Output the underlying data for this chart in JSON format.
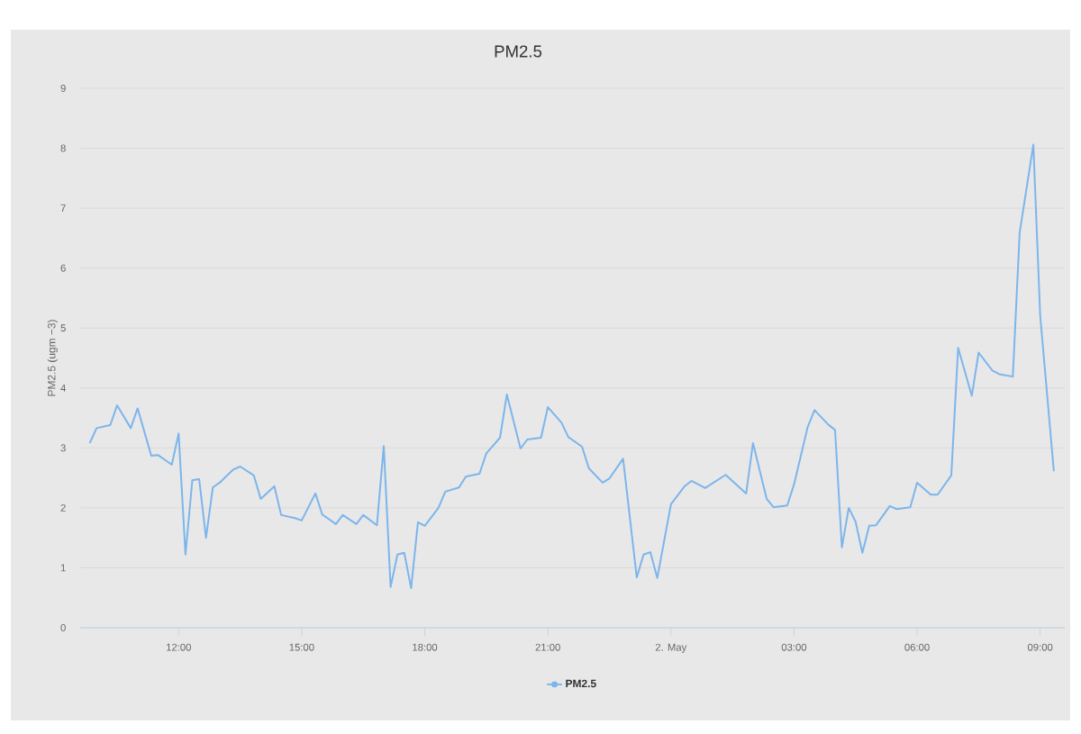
{
  "chart_data": {
    "type": "line",
    "title": "PM2.5",
    "ylabel": "PM2.5 (ugm −3)",
    "x": [
      "--05-01T09:50",
      "--05-01T10:00",
      "--05-01T10:20",
      "--05-01T10:30",
      "--05-01T10:50",
      "--05-01T11:00",
      "--05-01T11:20",
      "--05-01T11:30",
      "--05-01T11:50",
      "--05-01T12:00",
      "--05-01T12:10",
      "--05-01T12:20",
      "--05-01T12:30",
      "--05-01T12:40",
      "--05-01T12:50",
      "--05-01T13:00",
      "--05-01T13:20",
      "--05-01T13:30",
      "--05-01T13:50",
      "--05-01T14:00",
      "--05-01T14:20",
      "--05-01T14:30",
      "--05-01T14:50",
      "--05-01T15:00",
      "--05-01T15:20",
      "--05-01T15:30",
      "--05-01T15:50",
      "--05-01T16:00",
      "--05-01T16:20",
      "--05-01T16:30",
      "--05-01T16:50",
      "--05-01T17:00",
      "--05-01T17:10",
      "--05-01T17:20",
      "--05-01T17:30",
      "--05-01T17:40",
      "--05-01T17:50",
      "--05-01T18:00",
      "--05-01T18:20",
      "--05-01T18:30",
      "--05-01T18:50",
      "--05-01T19:00",
      "--05-01T19:20",
      "--05-01T19:30",
      "--05-01T19:50",
      "--05-01T20:00",
      "--05-01T20:20",
      "--05-01T20:30",
      "--05-01T20:50",
      "--05-01T21:00",
      "--05-01T21:20",
      "--05-01T21:30",
      "--05-01T21:50",
      "--05-01T22:00",
      "--05-01T22:20",
      "--05-01T22:30",
      "--05-01T22:50",
      "--05-01T23:10",
      "--05-01T23:20",
      "--05-01T23:30",
      "--05-01T23:40",
      "--05-02T00:00",
      "--05-02T00:20",
      "--05-02T00:30",
      "--05-02T00:50",
      "--05-02T01:20",
      "--05-02T01:50",
      "--05-02T02:00",
      "--05-02T02:20",
      "--05-02T02:30",
      "--05-02T02:50",
      "--05-02T03:00",
      "--05-02T03:20",
      "--05-02T03:30",
      "--05-02T03:50",
      "--05-02T04:00",
      "--05-02T04:10",
      "--05-02T04:20",
      "--05-02T04:30",
      "--05-02T04:40",
      "--05-02T04:50",
      "--05-02T05:00",
      "--05-02T05:20",
      "--05-02T05:30",
      "--05-02T05:50",
      "--05-02T06:00",
      "--05-02T06:20",
      "--05-02T06:30",
      "--05-02T06:50",
      "--05-02T07:00",
      "--05-02T07:20",
      "--05-02T07:30",
      "--05-02T07:50",
      "--05-02T08:00",
      "--05-02T08:20",
      "--05-02T08:30",
      "--05-02T08:50",
      "--05-02T09:00",
      "--05-02T09:20"
    ],
    "xlim": [
      "--05-01T09:36",
      "--05-02T09:36"
    ],
    "xticks": [
      {
        "value": "--05-01T12:00",
        "label": "12:00"
      },
      {
        "value": "--05-01T15:00",
        "label": "15:00"
      },
      {
        "value": "--05-01T18:00",
        "label": "18:00"
      },
      {
        "value": "--05-01T21:00",
        "label": "21:00"
      },
      {
        "value": "--05-02T00:00",
        "label": "2. May"
      },
      {
        "value": "--05-02T03:00",
        "label": "03:00"
      },
      {
        "value": "--05-02T06:00",
        "label": "06:00"
      },
      {
        "value": "--05-02T09:00",
        "label": "09:00"
      }
    ],
    "ylim": [
      0,
      9
    ],
    "yticks": [
      0,
      1,
      2,
      3,
      4,
      5,
      6,
      7,
      8,
      9
    ],
    "grid": "y",
    "legend": "bottom",
    "series": [
      {
        "name": "PM2.5",
        "color": "#7cb5ec",
        "values": [
          3.08,
          3.33,
          3.38,
          3.71,
          3.33,
          3.66,
          2.87,
          2.88,
          2.72,
          3.24,
          1.22,
          2.46,
          2.48,
          1.5,
          2.34,
          2.42,
          2.64,
          2.69,
          2.54,
          2.15,
          2.36,
          1.88,
          1.83,
          1.79,
          2.24,
          1.89,
          1.73,
          1.88,
          1.73,
          1.88,
          1.71,
          3.03,
          0.68,
          1.22,
          1.25,
          0.66,
          1.76,
          1.7,
          2.0,
          2.27,
          2.34,
          2.52,
          2.57,
          2.91,
          3.17,
          3.89,
          2.99,
          3.14,
          3.17,
          3.68,
          3.42,
          3.18,
          3.02,
          2.66,
          2.42,
          2.49,
          2.82,
          0.84,
          1.22,
          1.26,
          0.83,
          2.06,
          2.36,
          2.45,
          2.33,
          2.55,
          2.24,
          3.08,
          2.15,
          2.01,
          2.04,
          2.39,
          3.35,
          3.63,
          3.39,
          3.3,
          1.34,
          2.0,
          1.77,
          1.25,
          1.7,
          1.71,
          2.03,
          1.98,
          2.01,
          2.42,
          2.22,
          2.22,
          2.54,
          4.67,
          3.87,
          4.59,
          4.29,
          4.23,
          4.19,
          6.59,
          8.06,
          5.21,
          2.61
        ]
      }
    ]
  }
}
